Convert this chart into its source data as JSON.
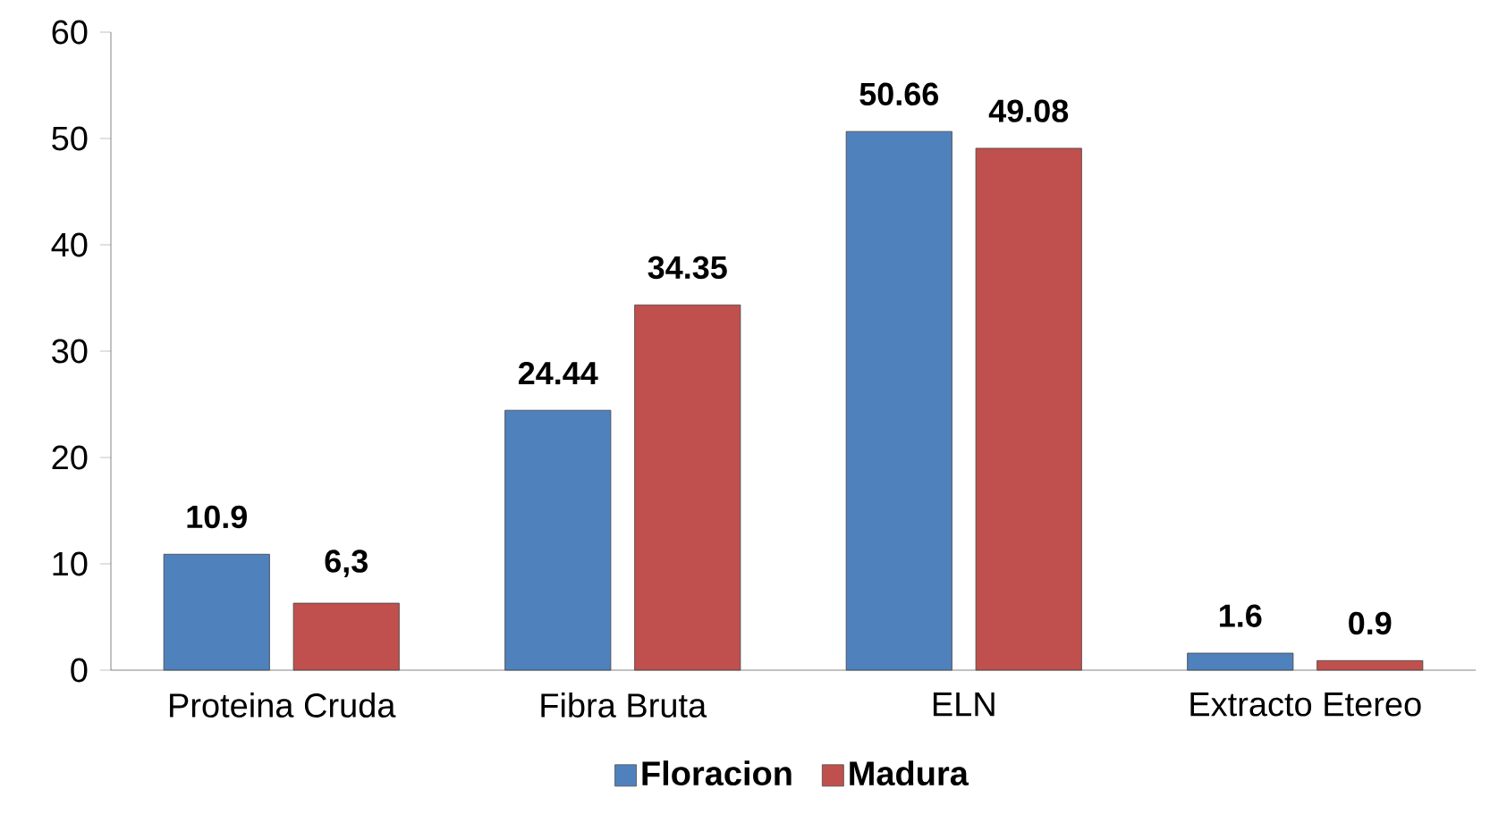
{
  "chart_data": {
    "type": "bar",
    "categories": [
      "Proteina Cruda",
      "Fibra Bruta",
      "ELN",
      "Extracto Etereo"
    ],
    "series": [
      {
        "name": "Floracion",
        "color": "#4f81bd",
        "values": [
          10.9,
          24.44,
          50.66,
          1.6
        ],
        "value_labels": [
          "10.9",
          "24.44",
          "50.66",
          "1.6"
        ]
      },
      {
        "name": "Madura",
        "color": "#c0504d",
        "values": [
          6.3,
          34.35,
          49.08,
          0.9
        ],
        "value_labels": [
          "6,3",
          "34.35",
          "49.08",
          "0.9"
        ]
      }
    ],
    "ylim": [
      0,
      60
    ],
    "yticks": [
      0,
      10,
      20,
      30,
      40,
      50,
      60
    ],
    "legend": "bottom"
  }
}
